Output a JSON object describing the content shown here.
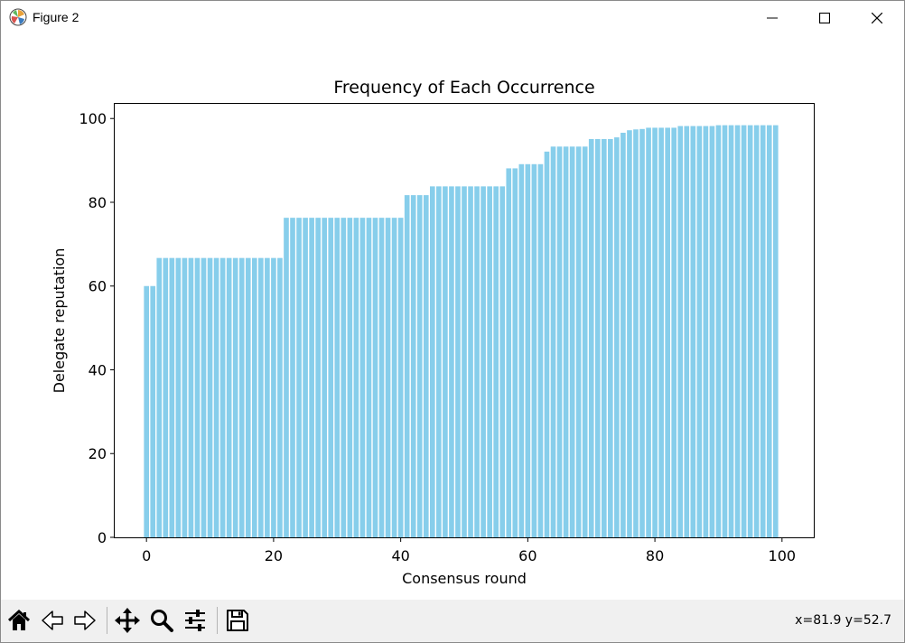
{
  "window": {
    "title": "Figure 2",
    "icons": {
      "app": "matplotlib-icon",
      "minimize": "minimize-icon",
      "maximize": "maximize-icon",
      "close": "close-icon"
    }
  },
  "toolbar": {
    "tools": [
      {
        "name": "home",
        "icon": "home-icon"
      },
      {
        "name": "back",
        "icon": "back-arrow-icon"
      },
      {
        "name": "forward",
        "icon": "forward-arrow-icon"
      },
      {
        "name": "pan",
        "icon": "move-icon"
      },
      {
        "name": "zoom",
        "icon": "magnifier-icon"
      },
      {
        "name": "configure",
        "icon": "sliders-icon"
      },
      {
        "name": "save",
        "icon": "floppy-disk-icon"
      }
    ],
    "coords": "x=81.9 y=52.7"
  },
  "chart_data": {
    "type": "bar",
    "title": "Frequency of Each Occurrence",
    "xlabel": "Consensus round",
    "ylabel": "Delegate reputation",
    "xlim": [
      -5,
      105
    ],
    "ylim": [
      0,
      103.5
    ],
    "xticks": [
      0,
      20,
      40,
      60,
      80,
      100
    ],
    "yticks": [
      0,
      20,
      40,
      60,
      80,
      100
    ],
    "bar_color": "#87ceeb",
    "grid": false,
    "x": [
      0,
      1,
      2,
      3,
      4,
      5,
      6,
      7,
      8,
      9,
      10,
      11,
      12,
      13,
      14,
      15,
      16,
      17,
      18,
      19,
      20,
      21,
      22,
      23,
      24,
      25,
      26,
      27,
      28,
      29,
      30,
      31,
      32,
      33,
      34,
      35,
      36,
      37,
      38,
      39,
      40,
      41,
      42,
      43,
      44,
      45,
      46,
      47,
      48,
      49,
      50,
      51,
      52,
      53,
      54,
      55,
      56,
      57,
      58,
      59,
      60,
      61,
      62,
      63,
      64,
      65,
      66,
      67,
      68,
      69,
      70,
      71,
      72,
      73,
      74,
      75,
      76,
      77,
      78,
      79,
      80,
      81,
      82,
      83,
      84,
      85,
      86,
      87,
      88,
      89,
      90,
      91,
      92,
      93,
      94,
      95,
      96,
      97,
      98,
      99
    ],
    "values": [
      60,
      60,
      66.7,
      66.7,
      66.7,
      66.7,
      66.7,
      66.7,
      66.7,
      66.7,
      66.7,
      66.7,
      66.7,
      66.7,
      66.7,
      66.7,
      66.7,
      66.7,
      66.7,
      66.7,
      66.7,
      66.7,
      76.3,
      76.3,
      76.3,
      76.3,
      76.3,
      76.3,
      76.3,
      76.3,
      76.3,
      76.3,
      76.3,
      76.3,
      76.3,
      76.3,
      76.3,
      76.3,
      76.3,
      76.3,
      76.3,
      81.7,
      81.7,
      81.7,
      81.7,
      83.8,
      83.8,
      83.8,
      83.8,
      83.8,
      83.8,
      83.8,
      83.8,
      83.8,
      83.8,
      83.8,
      83.8,
      88.1,
      88.1,
      89.1,
      89.1,
      89.1,
      89.1,
      92.1,
      93.3,
      93.3,
      93.3,
      93.3,
      93.3,
      93.3,
      95.1,
      95.1,
      95.1,
      95.1,
      95.5,
      96.6,
      97.2,
      97.4,
      97.5,
      97.8,
      97.8,
      97.8,
      97.8,
      97.8,
      98.2,
      98.2,
      98.2,
      98.2,
      98.2,
      98.2,
      98.4,
      98.4,
      98.4,
      98.4,
      98.4,
      98.4,
      98.4,
      98.4,
      98.4,
      98.4
    ]
  }
}
